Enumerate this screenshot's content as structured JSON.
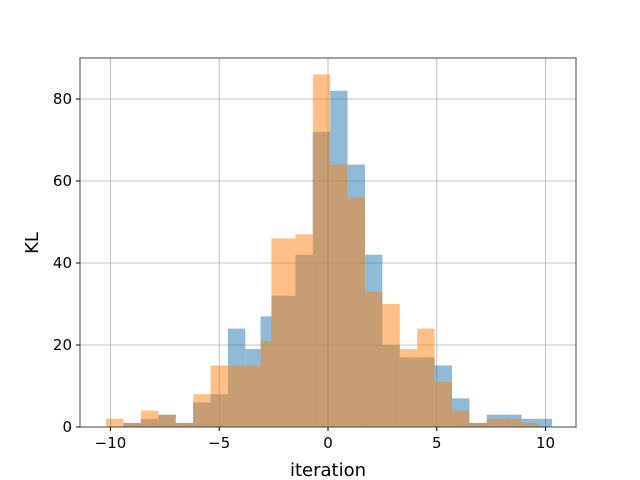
{
  "chart_data": {
    "type": "bar",
    "chart_title": "",
    "xlabel": "iteration",
    "ylabel": "KL",
    "xlim": [
      -11.4,
      11.4
    ],
    "ylim": [
      0,
      90
    ],
    "xticks": [
      -10,
      -5,
      0,
      5,
      10
    ],
    "yticks": [
      0,
      20,
      40,
      60,
      80
    ],
    "xtick_labels": [
      "−10",
      "−5",
      "0",
      "5",
      "10"
    ],
    "ytick_labels": [
      "0",
      "20",
      "40",
      "60",
      "80"
    ],
    "grid": true,
    "legend": "none",
    "series": [
      {
        "color": "#1f77b4",
        "alpha": 0.5,
        "bins": [
          {
            "x0": -9.4,
            "x1": -8.6,
            "value": 1
          },
          {
            "x0": -8.6,
            "x1": -7.8,
            "value": 2
          },
          {
            "x0": -7.8,
            "x1": -7.0,
            "value": 3
          },
          {
            "x0": -7.0,
            "x1": -6.2,
            "value": 1
          },
          {
            "x0": -6.2,
            "x1": -5.4,
            "value": 6
          },
          {
            "x0": -5.4,
            "x1": -4.6,
            "value": 8
          },
          {
            "x0": -4.6,
            "x1": -3.8,
            "value": 24
          },
          {
            "x0": -3.8,
            "x1": -3.1,
            "value": 19
          },
          {
            "x0": -3.1,
            "x1": -2.6,
            "value": 27
          },
          {
            "x0": -2.6,
            "x1": -1.5,
            "value": 32
          },
          {
            "x0": -1.5,
            "x1": -0.7,
            "value": 42
          },
          {
            "x0": -0.7,
            "x1": 0.1,
            "value": 72
          },
          {
            "x0": 0.1,
            "x1": 0.9,
            "value": 82
          },
          {
            "x0": 0.9,
            "x1": 1.7,
            "value": 64
          },
          {
            "x0": 1.7,
            "x1": 2.5,
            "value": 42
          },
          {
            "x0": 2.5,
            "x1": 3.3,
            "value": 20
          },
          {
            "x0": 3.3,
            "x1": 4.1,
            "value": 17
          },
          {
            "x0": 4.1,
            "x1": 4.9,
            "value": 17
          },
          {
            "x0": 4.9,
            "x1": 5.7,
            "value": 15
          },
          {
            "x0": 5.7,
            "x1": 6.5,
            "value": 7
          },
          {
            "x0": 6.5,
            "x1": 7.3,
            "value": 1
          },
          {
            "x0": 7.3,
            "x1": 8.1,
            "value": 3
          },
          {
            "x0": 8.1,
            "x1": 8.9,
            "value": 3
          },
          {
            "x0": 8.9,
            "x1": 9.7,
            "value": 2
          },
          {
            "x0": 9.7,
            "x1": 10.3,
            "value": 2
          }
        ]
      },
      {
        "color": "#ff7f0e",
        "alpha": 0.5,
        "bins": [
          {
            "x0": -10.2,
            "x1": -9.4,
            "value": 2
          },
          {
            "x0": -9.4,
            "x1": -8.6,
            "value": 1
          },
          {
            "x0": -8.6,
            "x1": -7.8,
            "value": 4
          },
          {
            "x0": -7.8,
            "x1": -7.0,
            "value": 3
          },
          {
            "x0": -7.0,
            "x1": -6.2,
            "value": 1
          },
          {
            "x0": -6.2,
            "x1": -5.4,
            "value": 8
          },
          {
            "x0": -5.4,
            "x1": -4.6,
            "value": 15
          },
          {
            "x0": -4.6,
            "x1": -3.8,
            "value": 15
          },
          {
            "x0": -3.8,
            "x1": -3.1,
            "value": 15
          },
          {
            "x0": -3.1,
            "x1": -2.6,
            "value": 21
          },
          {
            "x0": -2.6,
            "x1": -1.5,
            "value": 46
          },
          {
            "x0": -1.5,
            "x1": -0.7,
            "value": 47
          },
          {
            "x0": -0.7,
            "x1": 0.1,
            "value": 86
          },
          {
            "x0": 0.1,
            "x1": 0.9,
            "value": 64
          },
          {
            "x0": 0.9,
            "x1": 1.7,
            "value": 56
          },
          {
            "x0": 1.7,
            "x1": 2.5,
            "value": 33
          },
          {
            "x0": 2.5,
            "x1": 3.3,
            "value": 30
          },
          {
            "x0": 3.3,
            "x1": 4.1,
            "value": 19
          },
          {
            "x0": 4.1,
            "x1": 4.9,
            "value": 24
          },
          {
            "x0": 4.9,
            "x1": 5.7,
            "value": 11
          },
          {
            "x0": 5.7,
            "x1": 6.5,
            "value": 4
          },
          {
            "x0": 6.5,
            "x1": 7.3,
            "value": 1
          },
          {
            "x0": 7.3,
            "x1": 8.1,
            "value": 2
          },
          {
            "x0": 8.1,
            "x1": 8.9,
            "value": 2
          },
          {
            "x0": 8.9,
            "x1": 9.7,
            "value": 1
          }
        ]
      }
    ]
  }
}
